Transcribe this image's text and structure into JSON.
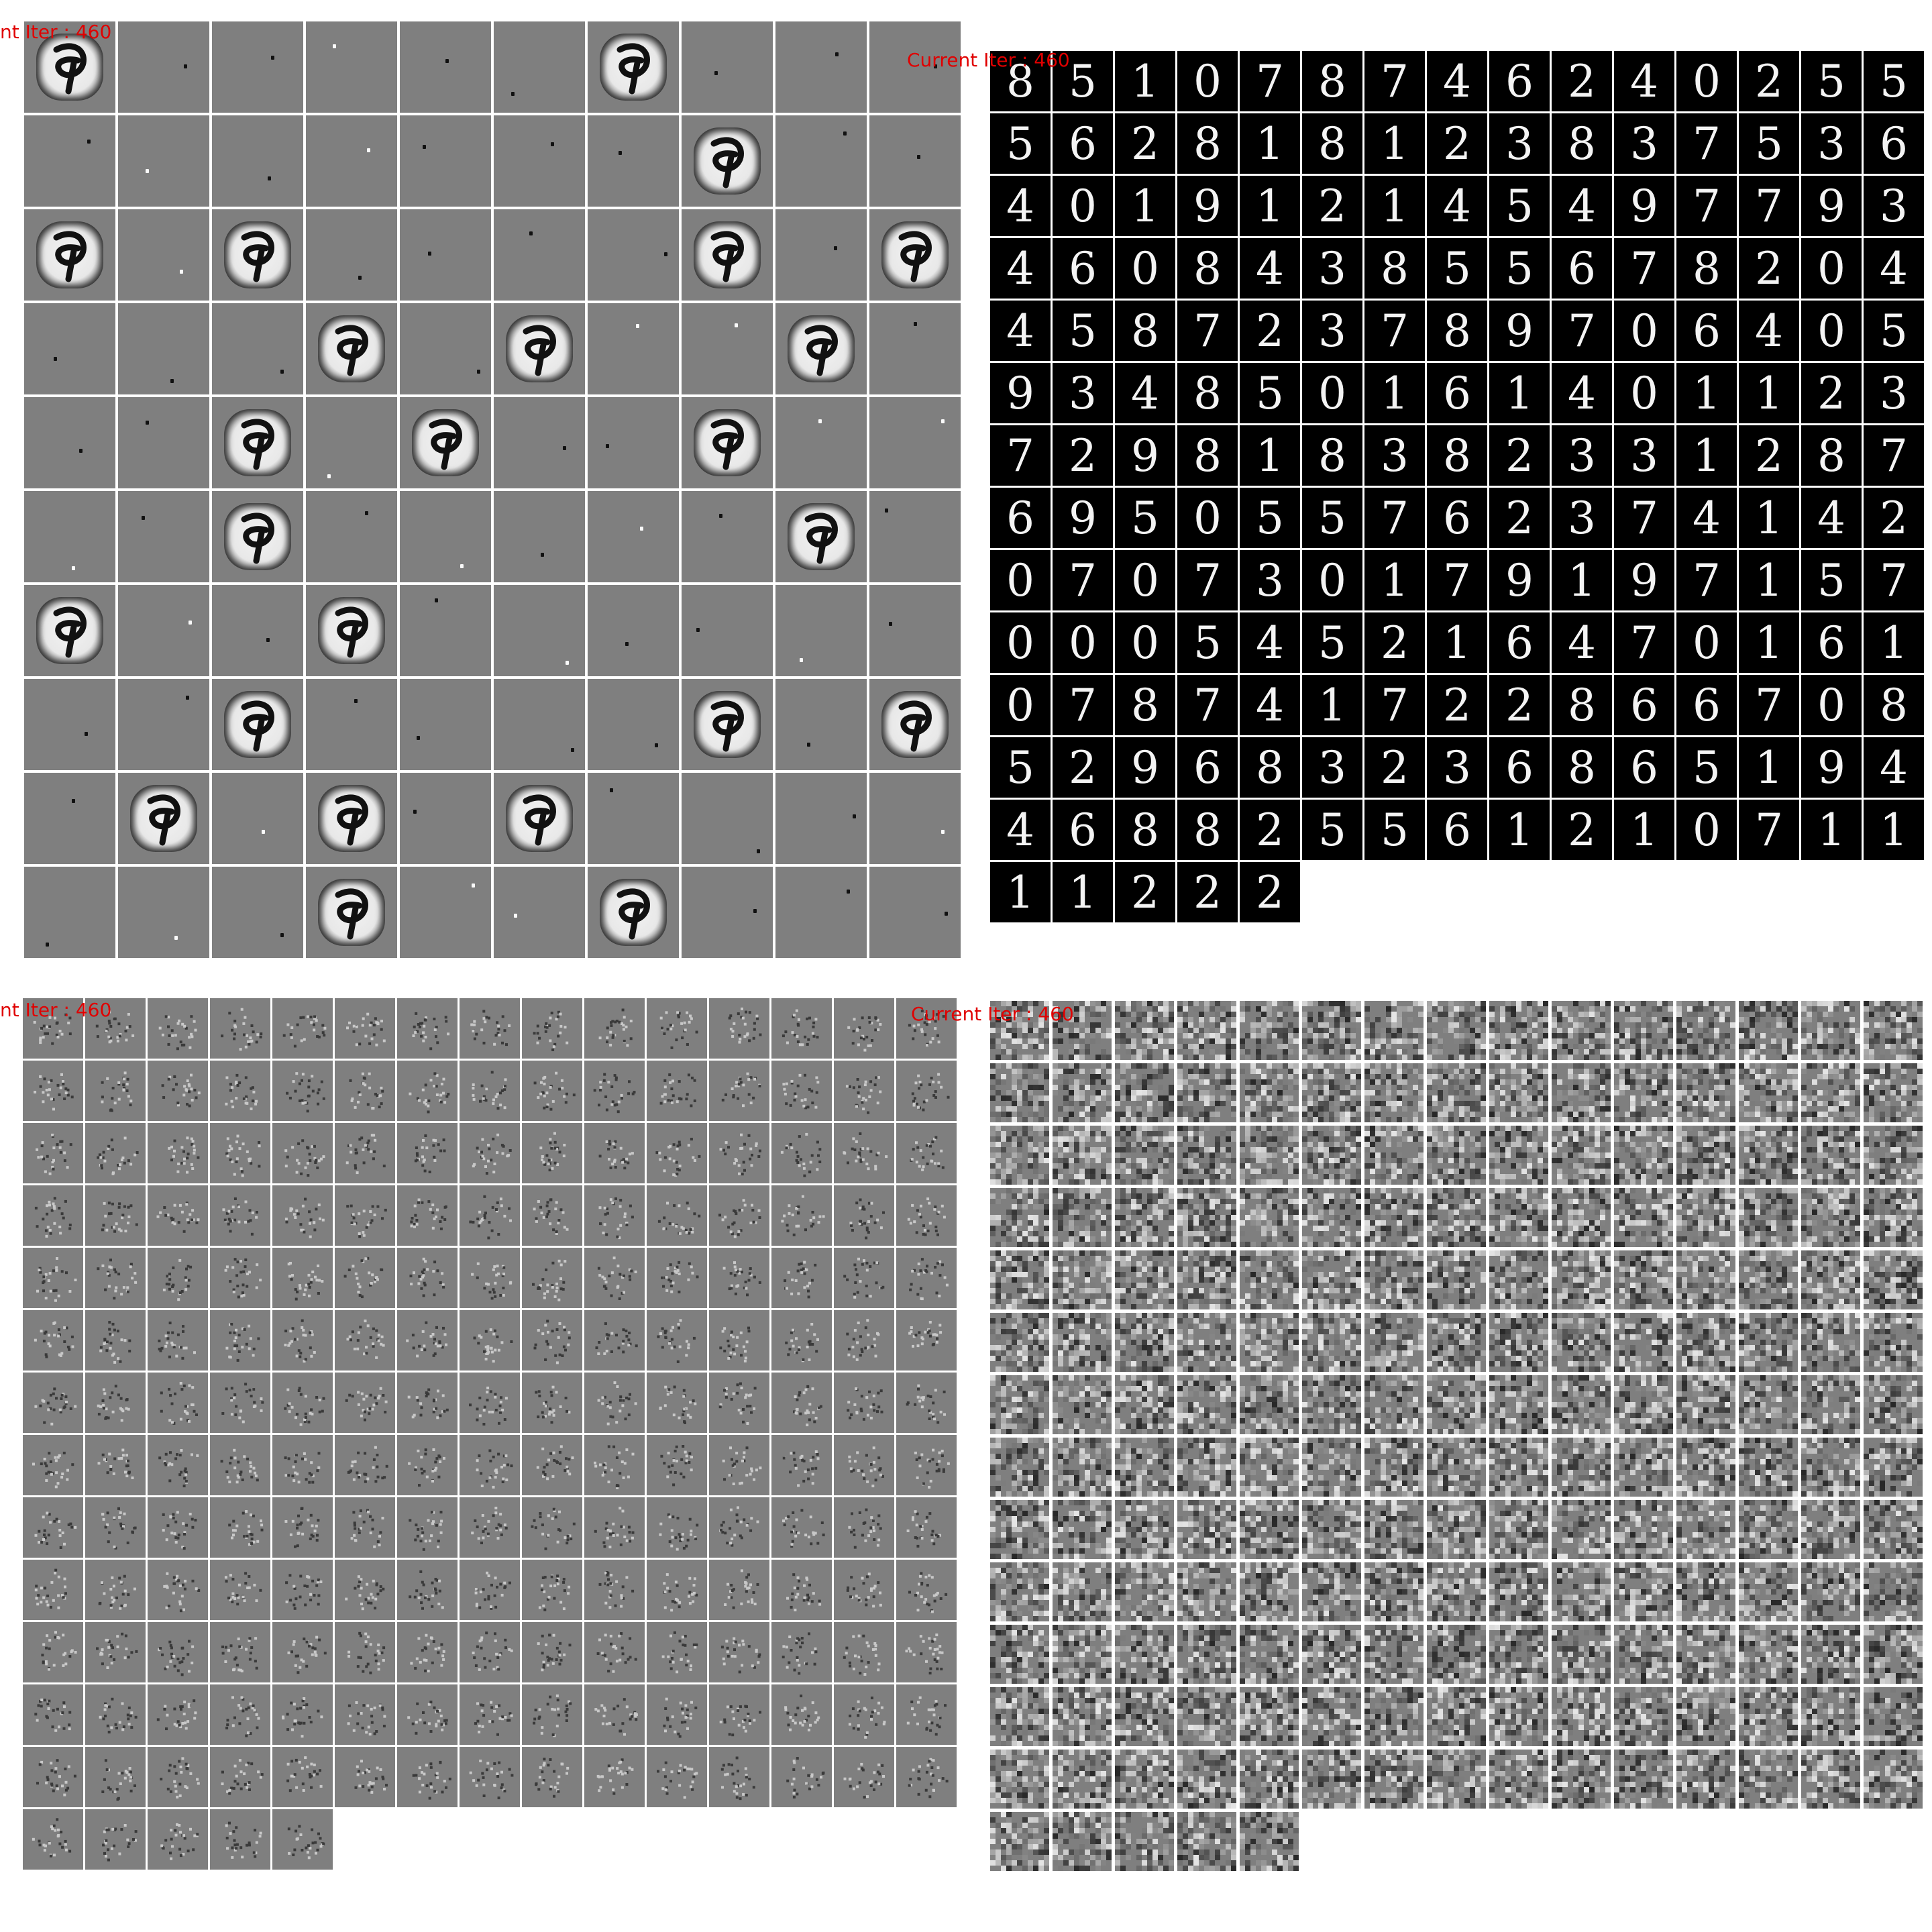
{
  "panels": {
    "top_left": {
      "label": "nt Iter : 460",
      "rows": 10,
      "cols": 10
    },
    "top_right": {
      "label": "Current Iter : 460",
      "digits": [
        "8",
        "5",
        "1",
        "0",
        "7",
        "8",
        "7",
        "4",
        "6",
        "2",
        "4",
        "0",
        "2",
        "5",
        "5",
        "5",
        "6",
        "2",
        "8",
        "1",
        "8",
        "1",
        "2",
        "3",
        "8",
        "3",
        "7",
        "5",
        "3",
        "6",
        "4",
        "0",
        "1",
        "9",
        "1",
        "2",
        "1",
        "4",
        "5",
        "4",
        "9",
        "7",
        "7",
        "9",
        "3",
        "4",
        "6",
        "0",
        "8",
        "4",
        "3",
        "8",
        "5",
        "5",
        "6",
        "7",
        "8",
        "2",
        "0",
        "4",
        "4",
        "5",
        "8",
        "7",
        "2",
        "3",
        "7",
        "8",
        "9",
        "7",
        "0",
        "6",
        "4",
        "0",
        "5",
        "9",
        "3",
        "4",
        "8",
        "5",
        "0",
        "1",
        "6",
        "1",
        "4",
        "0",
        "1",
        "1",
        "2",
        "3",
        "7",
        "2",
        "9",
        "8",
        "1",
        "8",
        "3",
        "8",
        "2",
        "3",
        "3",
        "1",
        "2",
        "8",
        "7",
        "6",
        "9",
        "5",
        "0",
        "5",
        "5",
        "7",
        "6",
        "2",
        "3",
        "7",
        "4",
        "1",
        "4",
        "2",
        "0",
        "7",
        "0",
        "7",
        "3",
        "0",
        "1",
        "7",
        "9",
        "1",
        "9",
        "7",
        "1",
        "5",
        "7",
        "0",
        "0",
        "0",
        "5",
        "4",
        "5",
        "2",
        "1",
        "6",
        "4",
        "7",
        "0",
        "1",
        "6",
        "1",
        "0",
        "7",
        "8",
        "7",
        "4",
        "1",
        "7",
        "2",
        "2",
        "8",
        "6",
        "6",
        "7",
        "0",
        "8",
        "5",
        "2",
        "9",
        "6",
        "8",
        "3",
        "2",
        "3",
        "6",
        "8",
        "6",
        "5",
        "1",
        "9",
        "4",
        "4",
        "6",
        "8",
        "8",
        "2",
        "5",
        "5",
        "6",
        "1",
        "2",
        "1",
        "0",
        "7",
        "1",
        "1",
        "1",
        "1",
        "2",
        "2",
        "2"
      ]
    },
    "bottom_left": {
      "label": "nt Iter : 460",
      "count": 200,
      "cols": 15
    },
    "bottom_right": {
      "label": "Current Iter : 460",
      "count": 200,
      "cols": 15
    }
  },
  "colors": {
    "label": "#e00000",
    "gray": "#7f7f7f",
    "separator": "#ffffff",
    "black": "#000000"
  }
}
